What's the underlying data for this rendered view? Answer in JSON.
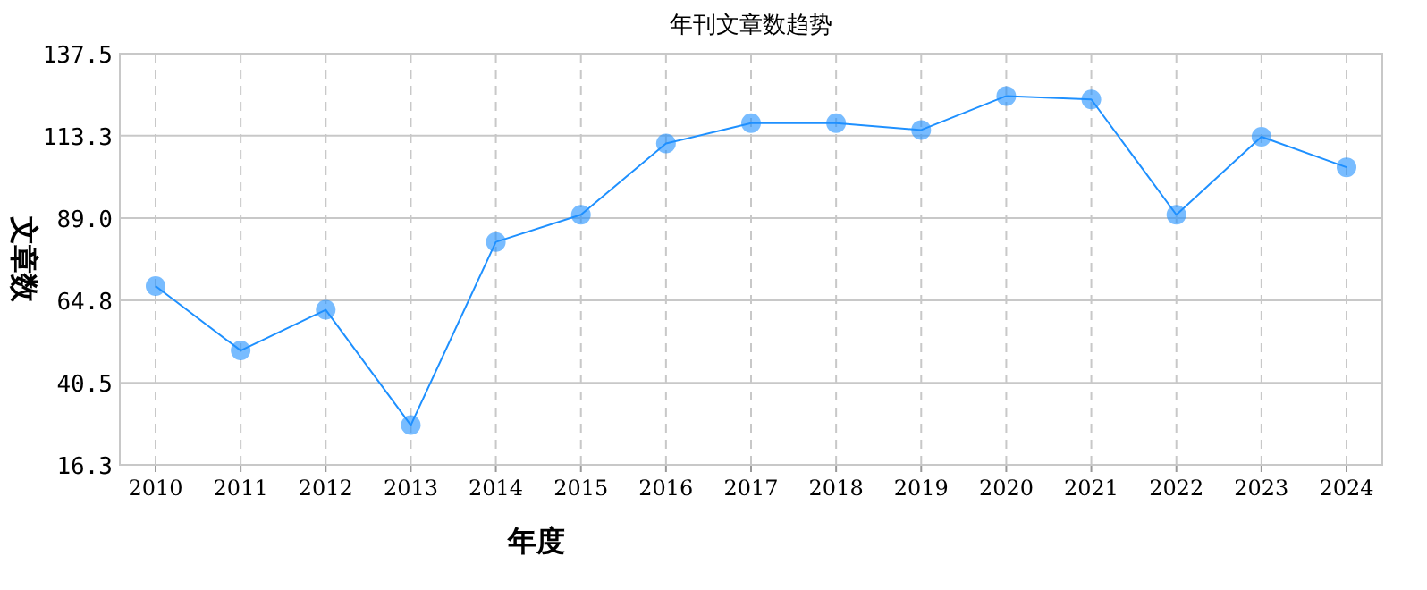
{
  "chart_data": {
    "type": "line",
    "title": "年刊文章数趋势",
    "xlabel": "年度",
    "ylabel": "文章数",
    "categories": [
      "2010",
      "2011",
      "2012",
      "2013",
      "2014",
      "2015",
      "2016",
      "2017",
      "2018",
      "2019",
      "2020",
      "2021",
      "2022",
      "2023",
      "2024"
    ],
    "series": [
      {
        "color": "#1e90ff",
        "values": [
          69,
          50,
          62,
          28,
          82,
          90,
          111,
          117,
          117,
          115,
          125,
          124,
          90,
          113,
          104
        ]
      }
    ],
    "ylim": [
      16.3,
      137.5
    ],
    "yticks": [
      16.3,
      40.5,
      64.8,
      {
        "value": 89,
        "label": "89.0"
      },
      113.3,
      137.5
    ],
    "grid": true,
    "marker": "circle",
    "line_style": "solid"
  }
}
